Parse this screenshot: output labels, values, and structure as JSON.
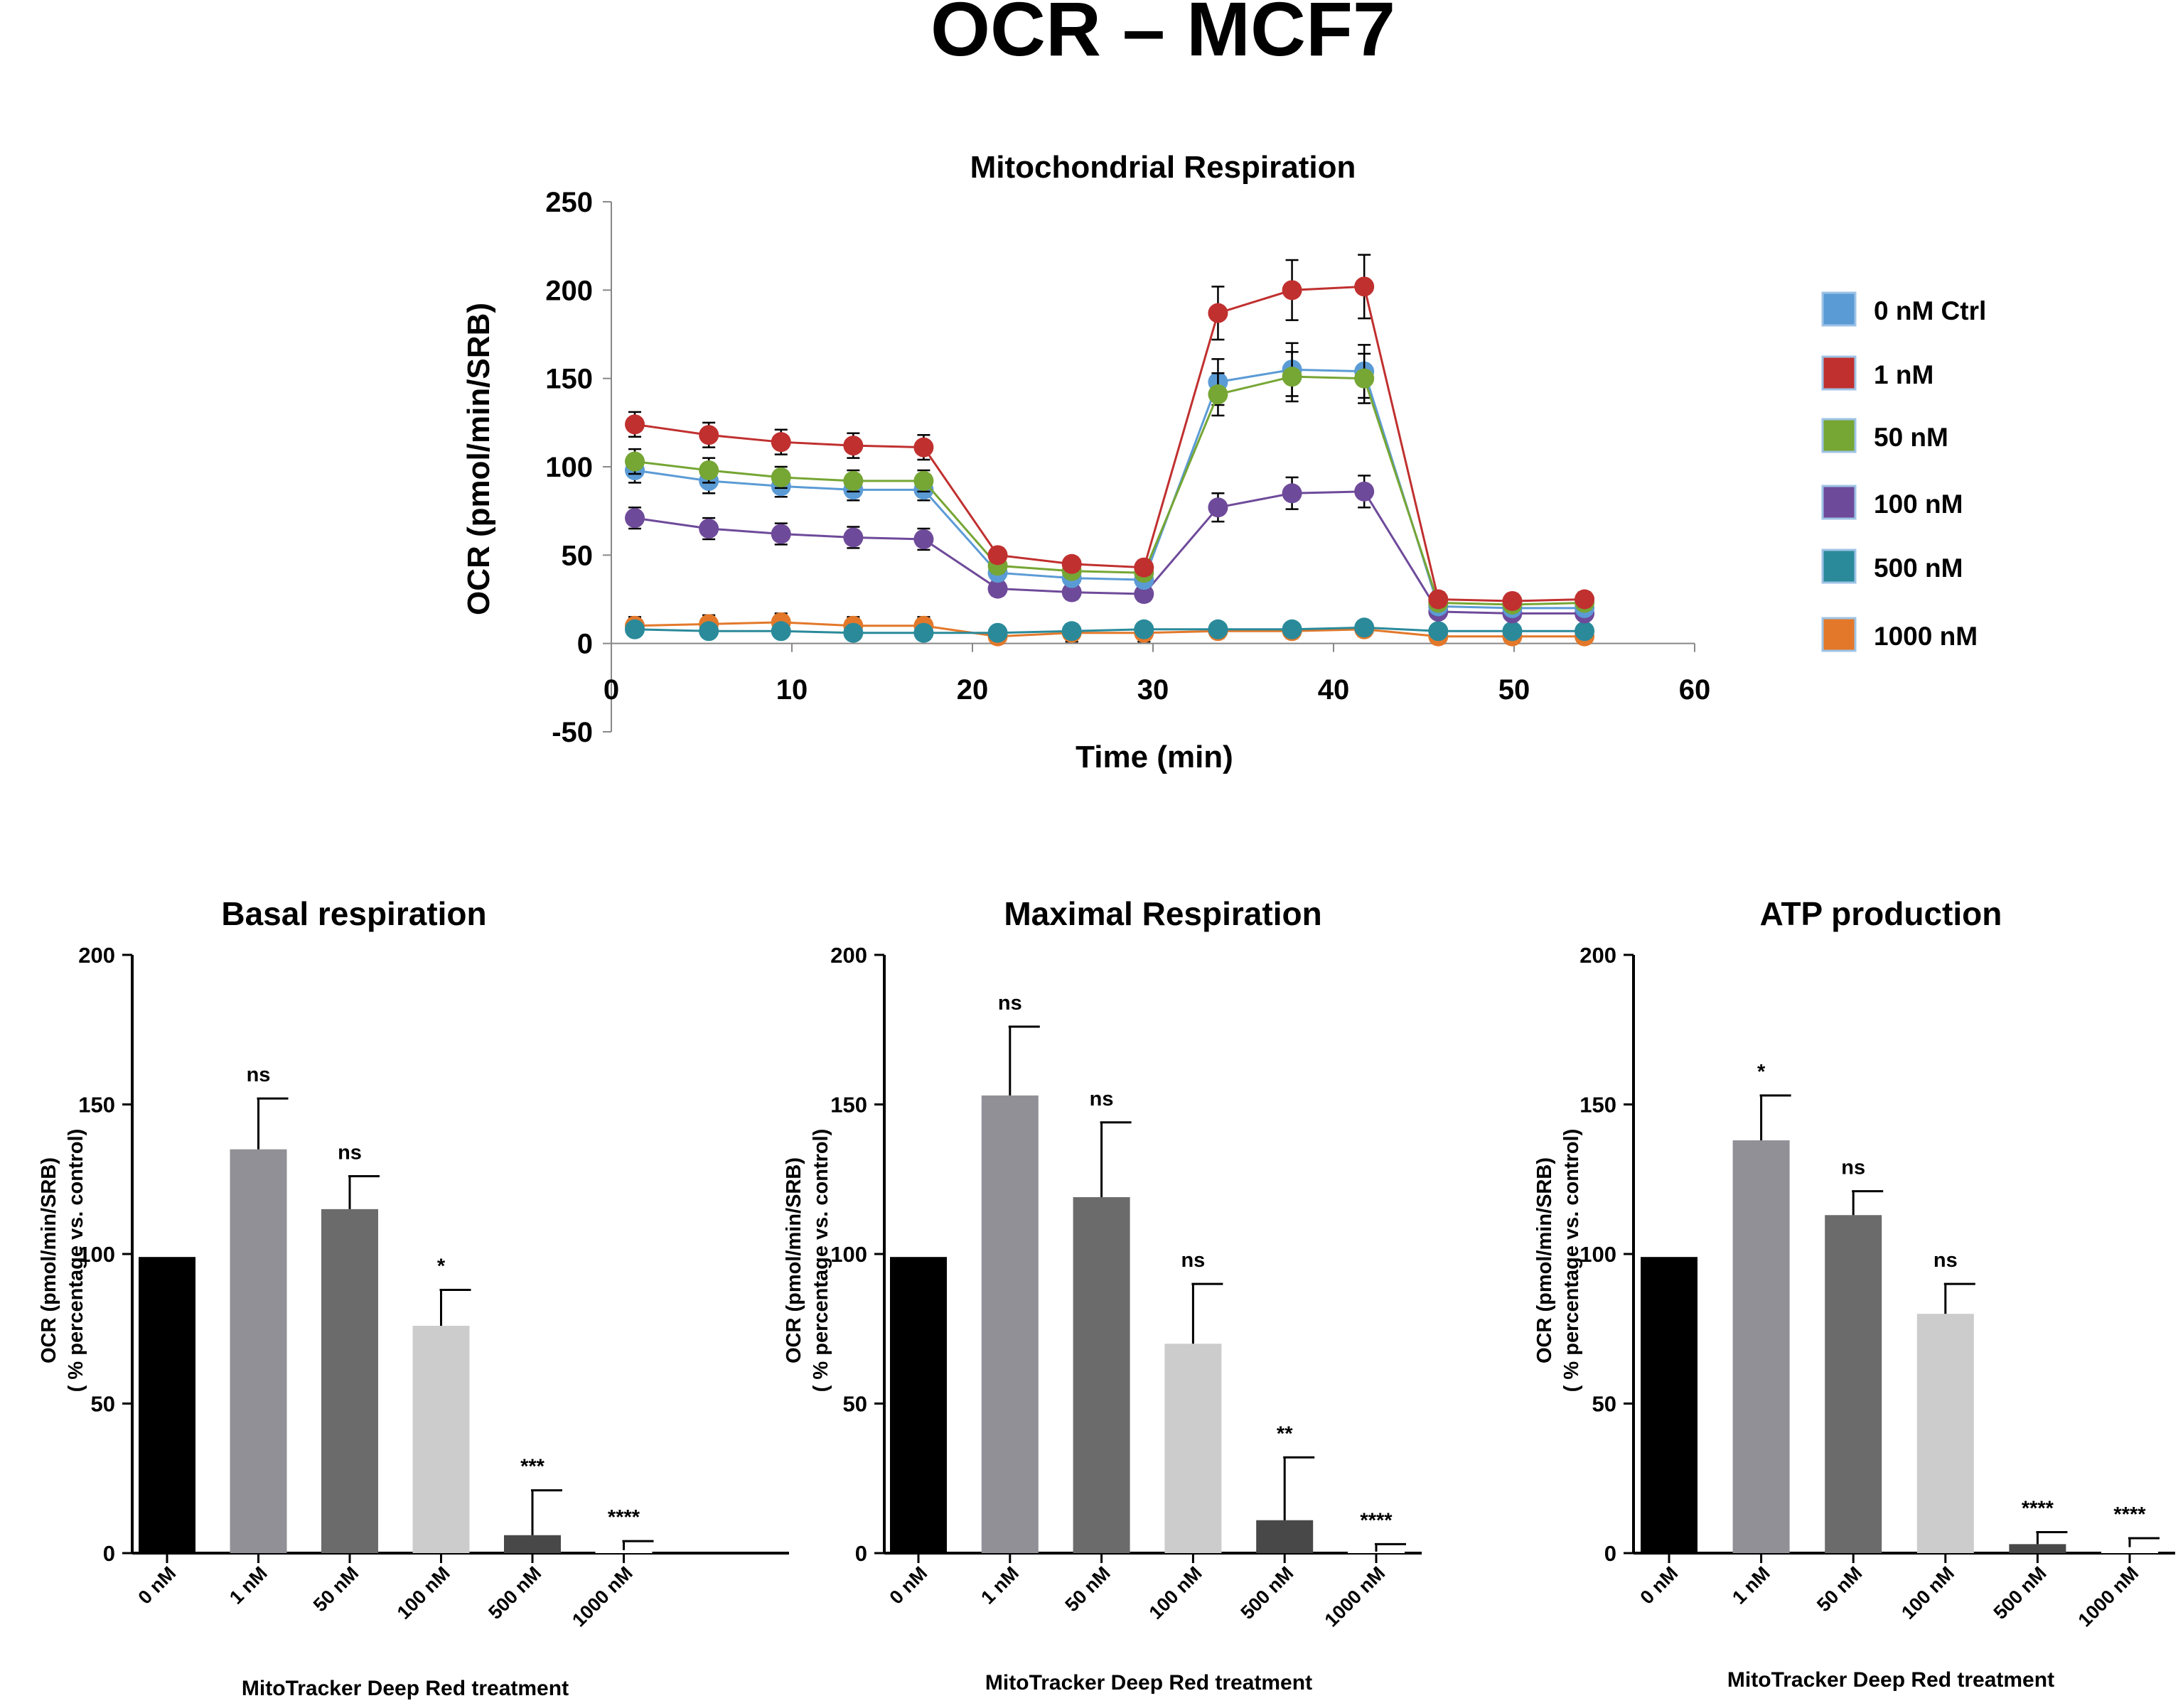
{
  "figure": {
    "title": "OCR – MCF7"
  },
  "line_chart": {
    "title": "Mitochondrial  Respiration",
    "xlabel": "Time (min)",
    "ylabel": "OCR (pmol/min/SRB)"
  },
  "bar_common": {
    "xlabel": "MitoTracker Deep Red treatment",
    "ylabel_line1": "OCR (pmol/min/SRB)",
    "ylabel_line2": "( % percentage vs. control)"
  },
  "chart_data": [
    {
      "type": "line",
      "title": "Mitochondrial  Respiration",
      "xlabel": "Time (min)",
      "ylabel": "OCR (pmol/min/SRB)",
      "xlim": [
        0,
        60
      ],
      "ylim": [
        -50,
        250
      ],
      "xticks": [
        0,
        10,
        20,
        30,
        40,
        50,
        60
      ],
      "yticks": [
        -50,
        0,
        50,
        100,
        150,
        200,
        250
      ],
      "x": [
        1.3,
        5.4,
        9.4,
        13.4,
        17.3,
        21.4,
        25.5,
        29.5,
        33.6,
        37.7,
        41.7,
        45.8,
        49.9,
        53.9
      ],
      "series": [
        {
          "name": "0 nM Ctrl",
          "color": "#5b9bd5",
          "values": [
            98,
            92,
            89,
            87,
            87,
            40,
            37,
            36,
            148,
            155,
            154,
            21,
            20,
            20
          ],
          "errors": [
            7,
            7,
            6,
            6,
            6,
            4,
            4,
            4,
            13,
            15,
            15,
            3,
            3,
            3
          ]
        },
        {
          "name": "1 nM",
          "color": "#c0302f",
          "values": [
            124,
            118,
            114,
            112,
            111,
            50,
            45,
            43,
            187,
            200,
            202,
            25,
            24,
            25
          ],
          "errors": [
            7,
            7,
            7,
            7,
            7,
            4,
            4,
            4,
            15,
            17,
            18,
            4,
            4,
            4
          ]
        },
        {
          "name": "50 nM",
          "color": "#76a634",
          "values": [
            103,
            98,
            94,
            92,
            92,
            44,
            41,
            40,
            141,
            151,
            150,
            23,
            22,
            23
          ],
          "errors": [
            7,
            7,
            6,
            6,
            6,
            4,
            4,
            4,
            12,
            14,
            14,
            3,
            3,
            3
          ]
        },
        {
          "name": "100 nM",
          "color": "#6e4a9a",
          "values": [
            71,
            65,
            62,
            60,
            59,
            31,
            29,
            28,
            77,
            85,
            86,
            18,
            17,
            17
          ],
          "errors": [
            6,
            6,
            6,
            6,
            6,
            4,
            4,
            4,
            8,
            9,
            9,
            3,
            3,
            3
          ]
        },
        {
          "name": "500 nM",
          "color": "#2a8a9a",
          "values": [
            8,
            7,
            7,
            6,
            6,
            6,
            7,
            8,
            8,
            8,
            9,
            7,
            7,
            7
          ],
          "errors": [
            3,
            3,
            3,
            3,
            3,
            3,
            3,
            3,
            3,
            3,
            3,
            3,
            3,
            3
          ]
        },
        {
          "name": "1000 nM",
          "color": "#e3782a",
          "values": [
            10,
            11,
            12,
            10,
            10,
            4,
            6,
            6,
            7,
            7,
            8,
            4,
            4,
            4
          ],
          "errors": [
            5,
            5,
            5,
            5,
            5,
            4,
            5,
            5,
            4,
            4,
            4,
            4,
            4,
            4
          ]
        }
      ]
    },
    {
      "type": "bar",
      "title": "Basal respiration",
      "xlabel": "MitoTracker Deep Red treatment",
      "ylabel": "OCR (pmol/min/SRB) ( % percentage vs. control)",
      "ylim": [
        0,
        200
      ],
      "yticks": [
        0,
        50,
        100,
        150,
        200
      ],
      "categories": [
        "0 nM",
        "1 nM",
        "50 nM",
        "100 nM",
        "500 nM",
        "1000 nM"
      ],
      "values": [
        99,
        135,
        115,
        76,
        6,
        1
      ],
      "errors": [
        0,
        17,
        11,
        12,
        15,
        3
      ],
      "significance": [
        "",
        "ns",
        "ns",
        "*",
        "***",
        "****"
      ],
      "colors": [
        "#000000",
        "#909096",
        "#6b6b6b",
        "#cccccc",
        "#484848",
        "#ffffff"
      ]
    },
    {
      "type": "bar",
      "title": "Maximal Respiration",
      "xlabel": "MitoTracker Deep Red treatment",
      "ylabel": "OCR (pmol/min/SRB) ( % percentage vs. control)",
      "ylim": [
        0,
        200
      ],
      "yticks": [
        0,
        50,
        100,
        150,
        200
      ],
      "categories": [
        "0 nM",
        "1 nM",
        "50 nM",
        "100 nM",
        "500 nM",
        "1000 nM"
      ],
      "values": [
        99,
        153,
        119,
        70,
        11,
        0.5
      ],
      "errors": [
        0,
        23,
        25,
        20,
        21,
        2.5
      ],
      "significance": [
        "",
        "ns",
        "ns",
        "ns",
        "**",
        "****"
      ],
      "colors": [
        "#000000",
        "#909096",
        "#6b6b6b",
        "#cccccc",
        "#484848",
        "#ffffff"
      ]
    },
    {
      "type": "bar",
      "title": "ATP production",
      "xlabel": "MitoTracker Deep Red treatment",
      "ylabel": "OCR (pmol/min/SRB) ( % percentage vs. control)",
      "ylim": [
        0,
        200
      ],
      "yticks": [
        0,
        50,
        100,
        150,
        200
      ],
      "categories": [
        "0 nM",
        "1 nM",
        "50 nM",
        "100 nM",
        "500 nM",
        "1000 nM"
      ],
      "values": [
        99,
        138,
        113,
        80,
        3,
        2
      ],
      "errors": [
        0,
        15,
        8,
        10,
        4,
        3
      ],
      "significance": [
        "",
        "*",
        "ns",
        "ns",
        "****",
        "****"
      ],
      "colors": [
        "#000000",
        "#909096",
        "#6b6b6b",
        "#cccccc",
        "#484848",
        "#ffffff"
      ]
    }
  ]
}
